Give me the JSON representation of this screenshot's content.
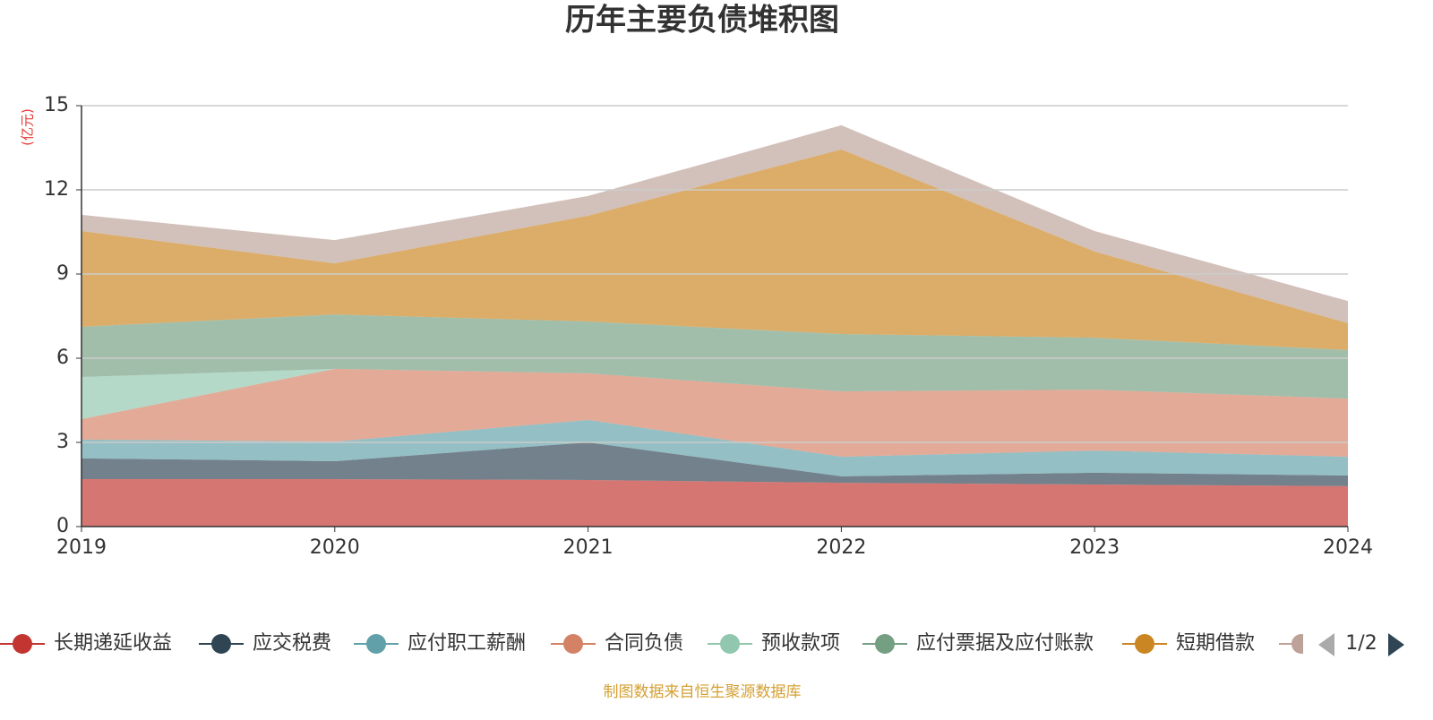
{
  "chart_data": {
    "type": "stacked_area",
    "title": "历年主要负债堆积图",
    "y_label": "(亿元)",
    "categories": [
      "2019",
      "2020",
      "2021",
      "2022",
      "2023",
      "2024"
    ],
    "series": [
      {
        "name": "长期递延收益",
        "color": "#c23531",
        "values": [
          1.69,
          1.69,
          1.66,
          1.56,
          1.5,
          1.44
        ]
      },
      {
        "name": "应交税费",
        "color": "#2f4554",
        "values": [
          0.74,
          0.64,
          1.34,
          0.23,
          0.42,
          0.38
        ]
      },
      {
        "name": "应付职工薪酬",
        "color": "#61a0a8",
        "values": [
          0.67,
          0.7,
          0.8,
          0.7,
          0.79,
          0.67
        ]
      },
      {
        "name": "合同负债",
        "color": "#d48265",
        "values": [
          0.73,
          2.59,
          1.66,
          2.33,
          2.17,
          2.07
        ]
      },
      {
        "name": "预收款项",
        "color": "#91c7ae",
        "values": [
          1.5,
          0,
          0,
          0,
          0,
          0
        ]
      },
      {
        "name": "应付票据及应付账款",
        "color": "#749f83",
        "values": [
          1.79,
          1.94,
          1.85,
          2.04,
          1.85,
          1.73
        ]
      },
      {
        "name": "短期借款",
        "color": "#ca8622",
        "values": [
          3.41,
          1.82,
          3.77,
          6.58,
          3.07,
          0.96
        ]
      },
      {
        "name": null,
        "color": "#bda29a",
        "values": [
          0.58,
          0.83,
          0.7,
          0.86,
          0.73,
          0.79
        ]
      }
    ],
    "ylim": [
      0,
      15
    ],
    "yticks": [
      0,
      3,
      6,
      9,
      12,
      15
    ],
    "grid": true,
    "legend_page": "1/2",
    "source": "制图数据来自恒生聚源数据库"
  }
}
